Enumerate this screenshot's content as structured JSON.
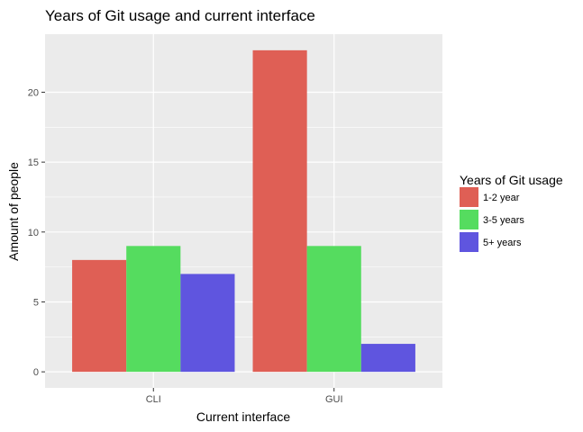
{
  "chart_data": {
    "type": "bar",
    "title": "Years of Git usage and current interface",
    "xlabel": "Current interface",
    "ylabel": "Amount of people",
    "categories": [
      "CLI",
      "GUI"
    ],
    "series": [
      {
        "name": "1-2 year",
        "values": [
          8,
          23
        ],
        "color": "#df5f55"
      },
      {
        "name": "3-5 years",
        "values": [
          9,
          9
        ],
        "color": "#55dc5f"
      },
      {
        "name": "5+ years",
        "values": [
          7,
          2
        ],
        "color": "#5f55df"
      }
    ],
    "ylim": [
      -1.15,
      24.15
    ],
    "yticks": [
      0,
      5,
      10,
      15,
      20
    ],
    "grid": true,
    "legend": {
      "title": "Years of Git usage",
      "position": "right"
    }
  }
}
